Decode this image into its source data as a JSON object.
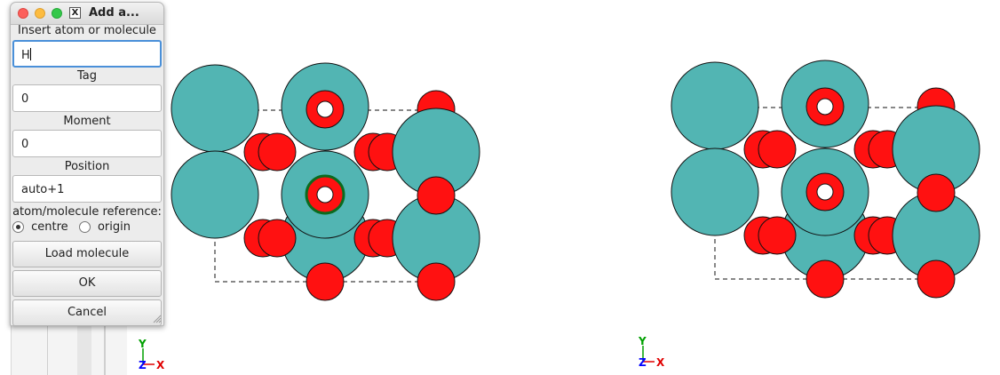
{
  "dialog": {
    "title": "Add a...",
    "insert_label": "Insert atom or molecule",
    "insert_value": "H",
    "tag_label": "Tag",
    "tag_value": "0",
    "moment_label": "Moment",
    "moment_value": "0",
    "position_label": "Position",
    "position_value": "auto+1",
    "reference_label": "atom/molecule reference:",
    "radio_centre": "centre",
    "radio_origin": "origin",
    "reference_selected": "centre",
    "load_button": "Load molecule",
    "ok_button": "OK",
    "cancel_button": "Cancel"
  },
  "colors": {
    "metal_atom": "#52b5b3",
    "oxygen_atom": "#ff1111",
    "selected_ring": "#0b6b1e",
    "axis_y": "#00a000",
    "axis_x": "#e00000",
    "axis_z": "#0000ff"
  },
  "axes": {
    "y": "Y",
    "x": "X",
    "z": "Z"
  }
}
